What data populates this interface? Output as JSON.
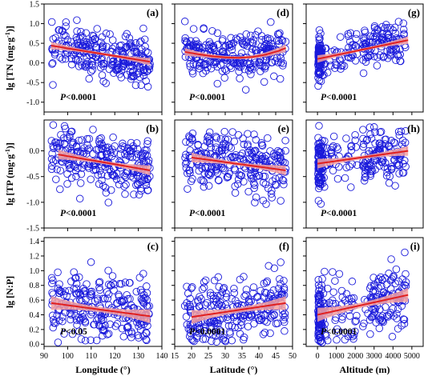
{
  "chart_data": {
    "type": "scatter",
    "columns": [
      {
        "xlabel": "Longitude (°)",
        "xlim": [
          90,
          140
        ],
        "xticks": [
          90,
          100,
          110,
          120,
          130,
          140
        ]
      },
      {
        "xlabel": "Latitude (°)",
        "xlim": [
          15,
          50
        ],
        "xticks": [
          15,
          20,
          25,
          30,
          35,
          40,
          45,
          50
        ]
      },
      {
        "xlabel": "Altitude (m)",
        "xlim": [
          -600,
          5600
        ],
        "xticks": [
          0,
          1000,
          2000,
          3000,
          4000,
          5000
        ]
      }
    ],
    "rows": [
      {
        "ylabel": "lg [TN (mg·g-1)]",
        "ylabel_main": "lg [TN (mg·g",
        "ylabel_sup": "-1",
        "ylabel_end": ")]",
        "ylim": [
          -1.25,
          1.5
        ],
        "yticks": [
          "1.5",
          "1.0",
          "0.5",
          "0.0",
          "-0.5",
          "-1.0"
        ],
        "ytick_values": [
          1.5,
          1.0,
          0.5,
          0.0,
          -0.5,
          -1.0
        ]
      },
      {
        "ylabel": "lg [TP (mg·g-1)]",
        "ylabel_main": "lg [TP (mg·g",
        "ylabel_sup": "-1",
        "ylabel_end": ")]",
        "ylim": [
          -1.5,
          0.6
        ],
        "yticks": [
          "-1.5",
          "-1.0",
          "-0.5",
          "0.0"
        ],
        "ytick_values": [
          -1.5,
          -1.0,
          -0.5,
          0.0
        ]
      },
      {
        "ylabel": "lg [N:P]",
        "ylabel_main": "lg [N:P]",
        "ylabel_sup": "",
        "ylabel_end": "",
        "ylim": [
          -0.03,
          1.45
        ],
        "yticks": [
          "1.4",
          "1.2",
          "1.0",
          "0.8",
          "0.6",
          "0.4",
          "0.2",
          "0.0"
        ],
        "ytick_values": [
          1.4,
          1.2,
          1.0,
          0.8,
          0.6,
          0.4,
          0.2,
          0.0
        ]
      }
    ],
    "panels": [
      {
        "id": "a",
        "label": "(a)",
        "p_prefix": "P",
        "p_rest": "<0.0001",
        "fit": {
          "x": [
            93,
            135
          ],
          "y": [
            0.44,
            0.03
          ]
        }
      },
      {
        "id": "d",
        "label": "(d)",
        "p_prefix": "P",
        "p_rest": "<0.0001",
        "fit_curve": {
          "x": [
            18,
            22,
            26,
            30,
            34,
            38,
            42,
            46,
            48
          ],
          "y": [
            0.28,
            0.22,
            0.17,
            0.14,
            0.13,
            0.15,
            0.21,
            0.31,
            0.38
          ]
        }
      },
      {
        "id": "g",
        "label": "(g)",
        "p_prefix": "P",
        "p_rest": "<0.0001",
        "fit": {
          "x": [
            0,
            4800
          ],
          "y": [
            0.1,
            0.58
          ]
        }
      },
      {
        "id": "b",
        "label": "(b)",
        "p_prefix": "P",
        "p_rest": "<0.0001",
        "fit": {
          "x": [
            96,
            135
          ],
          "y": [
            -0.07,
            -0.38
          ]
        }
      },
      {
        "id": "e",
        "label": "(e)",
        "p_prefix": "P",
        "p_rest": "<0.0001",
        "fit": {
          "x": [
            20,
            48
          ],
          "y": [
            -0.13,
            -0.38
          ]
        }
      },
      {
        "id": "h",
        "label": "(h)",
        "p_prefix": "P",
        "p_rest": "<0.0001",
        "fit": {
          "x": [
            0,
            4800
          ],
          "y": [
            -0.25,
            0.0
          ]
        }
      },
      {
        "id": "c",
        "label": "(c)",
        "p_prefix": "P",
        "p_rest": "<0.05",
        "fit": {
          "x": [
            93,
            135
          ],
          "y": [
            0.56,
            0.38
          ]
        }
      },
      {
        "id": "f",
        "label": "(f)",
        "p_prefix": "P",
        "p_rest": "<0.0001",
        "fit": {
          "x": [
            20,
            48
          ],
          "y": [
            0.37,
            0.56
          ]
        }
      },
      {
        "id": "i",
        "label": "(i)",
        "p_prefix": "P",
        "p_rest": "<0.0001",
        "fit": {
          "x": [
            0,
            4800
          ],
          "y": [
            0.4,
            0.67
          ]
        }
      }
    ],
    "point_color": "#1a1adb",
    "fit_color": "#e02020",
    "band_color": "#f4a0a0",
    "grid": false,
    "legend": "none"
  }
}
